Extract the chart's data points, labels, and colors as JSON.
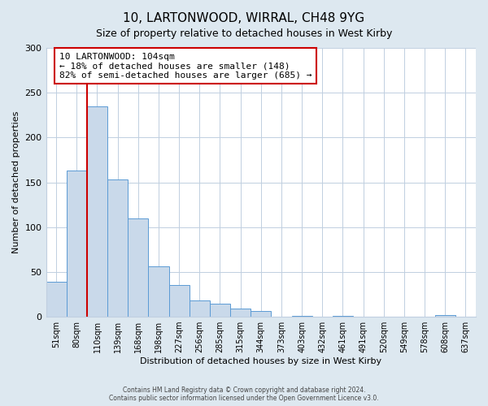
{
  "title": "10, LARTONWOOD, WIRRAL, CH48 9YG",
  "subtitle": "Size of property relative to detached houses in West Kirby",
  "xlabel": "Distribution of detached houses by size in West Kirby",
  "ylabel": "Number of detached properties",
  "bar_labels": [
    "51sqm",
    "80sqm",
    "110sqm",
    "139sqm",
    "168sqm",
    "198sqm",
    "227sqm",
    "256sqm",
    "285sqm",
    "315sqm",
    "344sqm",
    "373sqm",
    "403sqm",
    "432sqm",
    "461sqm",
    "491sqm",
    "520sqm",
    "549sqm",
    "578sqm",
    "608sqm",
    "637sqm"
  ],
  "bar_values": [
    39,
    163,
    235,
    153,
    110,
    56,
    35,
    18,
    15,
    9,
    6,
    0,
    1,
    0,
    1,
    0,
    0,
    0,
    0,
    2,
    0
  ],
  "bar_color": "#c9d9ea",
  "bar_edge_color": "#5b9bd5",
  "ylim": [
    0,
    300
  ],
  "yticks": [
    0,
    50,
    100,
    150,
    200,
    250,
    300
  ],
  "red_line_index": 2,
  "annotation_text": "10 LARTONWOOD: 104sqm\n← 18% of detached houses are smaller (148)\n82% of semi-detached houses are larger (685) →",
  "annotation_box_color": "#ffffff",
  "annotation_box_edge_color": "#cc0000",
  "footer_line1": "Contains HM Land Registry data © Crown copyright and database right 2024.",
  "footer_line2": "Contains public sector information licensed under the Open Government Licence v3.0.",
  "background_color": "#dde8f0",
  "plot_background_color": "#ffffff",
  "grid_color": "#c0cfe0"
}
